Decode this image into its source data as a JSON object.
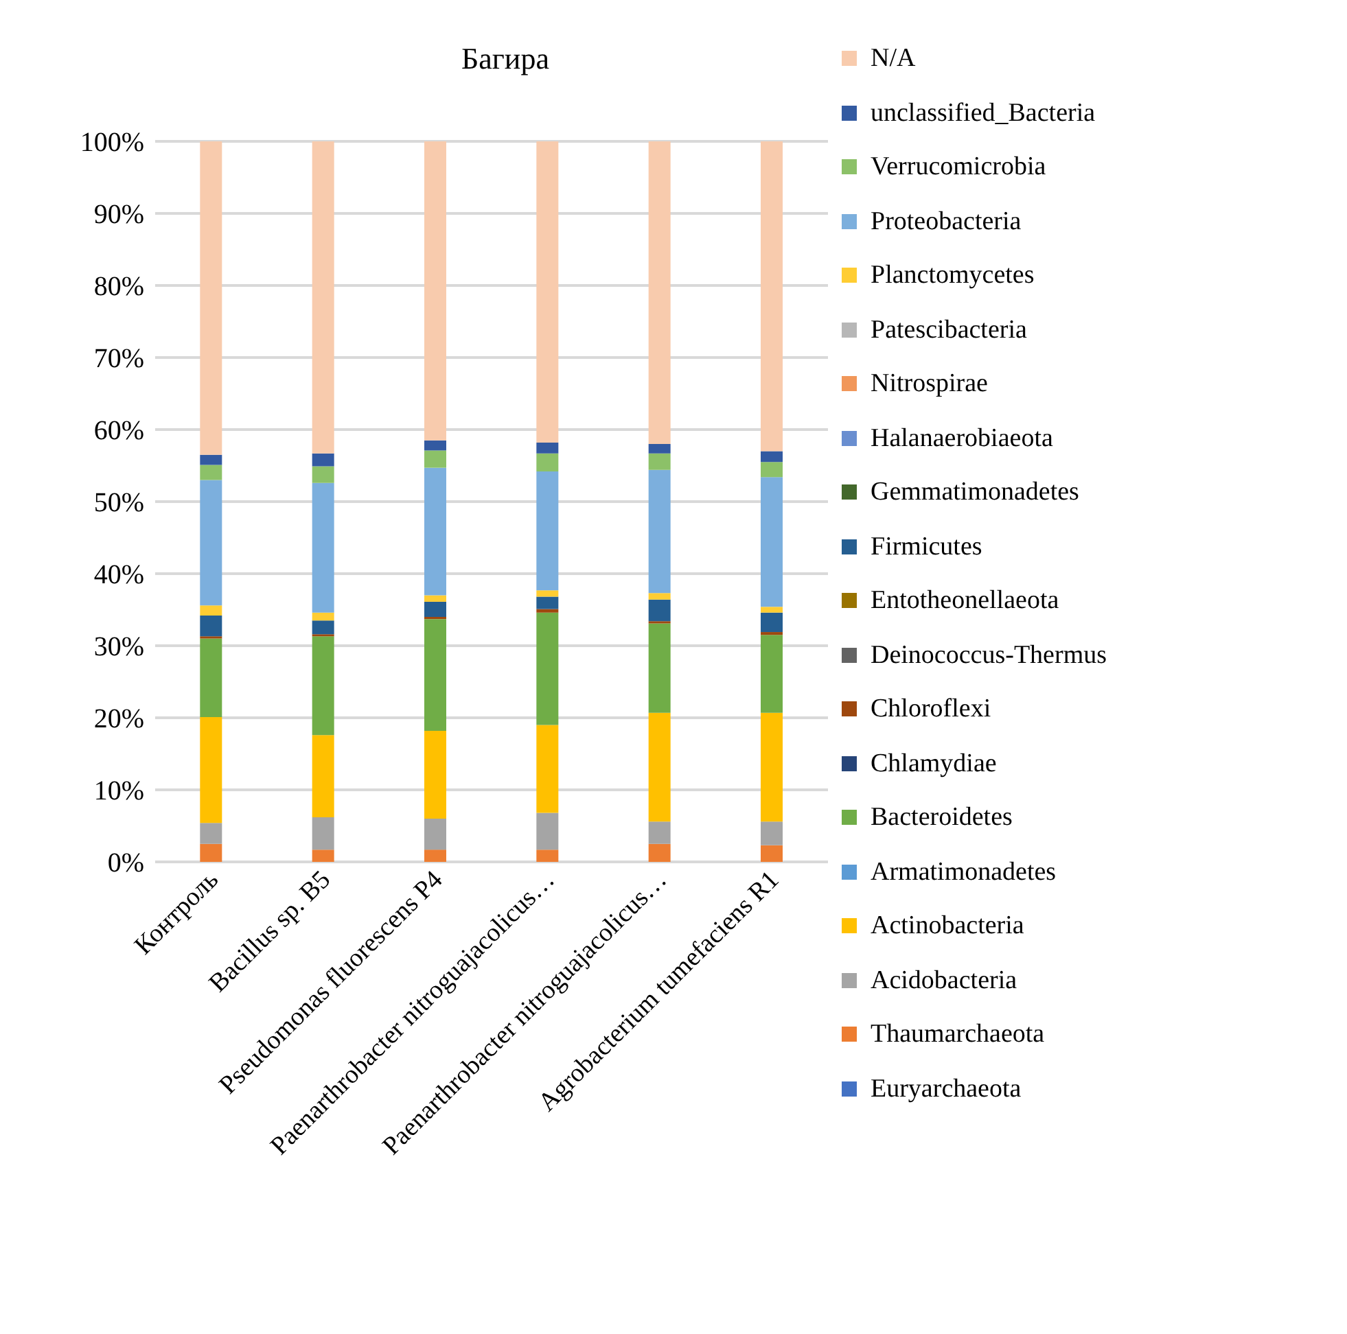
{
  "chart_data": {
    "type": "bar",
    "stacked": true,
    "title": "Багира",
    "categories": [
      "Контроль",
      "Bacillus sp. B5",
      "Pseudomonas fluorescens P4",
      "Paenarthrobacter nitroguajacolicus…",
      "Paenarthrobacter nitroguajacolicus…",
      "Agrobacterium tumefaciens R1"
    ],
    "series": [
      {
        "name": "Euryarchaeota",
        "color": "#4472c4",
        "values": [
          null,
          null,
          null,
          null,
          null,
          null
        ]
      },
      {
        "name": "Thaumarchaeota",
        "color": "#ed7d31",
        "values": [
          2.5,
          1.7,
          1.7,
          1.7,
          2.5,
          2.3
        ]
      },
      {
        "name": "Acidobacteria",
        "color": "#a5a5a5",
        "values": [
          2.9,
          4.5,
          4.3,
          5.1,
          3.1,
          3.3
        ]
      },
      {
        "name": "Actinobacteria",
        "color": "#ffc000",
        "values": [
          14.7,
          11.4,
          12.2,
          12.2,
          15.1,
          15.1
        ]
      },
      {
        "name": "Armatimonadetes",
        "color": "#5b9bd5",
        "values": [
          null,
          null,
          null,
          null,
          null,
          null
        ]
      },
      {
        "name": "Bacteroidetes",
        "color": "#70ad47",
        "values": [
          10.9,
          13.7,
          15.5,
          15.6,
          12.4,
          10.8
        ]
      },
      {
        "name": "Chlamydiae",
        "color": "#264478",
        "values": [
          null,
          null,
          null,
          null,
          null,
          null
        ]
      },
      {
        "name": "Chloroflexi",
        "color": "#9e480e",
        "values": [
          0.3,
          0.3,
          0.3,
          0.5,
          0.3,
          0.4
        ]
      },
      {
        "name": "Deinococcus-Thermus",
        "color": "#636363",
        "values": [
          null,
          null,
          null,
          null,
          null,
          null
        ]
      },
      {
        "name": "Entotheonellaeota",
        "color": "#997300",
        "values": [
          null,
          null,
          null,
          null,
          null,
          null
        ]
      },
      {
        "name": "Firmicutes",
        "color": "#255e91",
        "values": [
          2.9,
          1.9,
          2.1,
          1.7,
          3.0,
          2.7
        ]
      },
      {
        "name": "Gemmatimonadetes",
        "color": "#43682b",
        "values": [
          null,
          null,
          null,
          null,
          null,
          null
        ]
      },
      {
        "name": "Halanaerobiaeota",
        "color": "#698ed0",
        "values": [
          null,
          null,
          null,
          null,
          null,
          null
        ]
      },
      {
        "name": "Nitrospirae",
        "color": "#f1975a",
        "values": [
          null,
          null,
          null,
          null,
          null,
          null
        ]
      },
      {
        "name": "Patescibacteria",
        "color": "#b7b7b7",
        "values": [
          null,
          null,
          null,
          null,
          null,
          null
        ]
      },
      {
        "name": "Planctomycetes",
        "color": "#ffcd33",
        "values": [
          1.4,
          1.1,
          0.9,
          0.9,
          0.9,
          0.8
        ]
      },
      {
        "name": "Proteobacteria",
        "color": "#7cafdd",
        "values": [
          17.4,
          18.0,
          17.7,
          16.5,
          17.1,
          18.0
        ]
      },
      {
        "name": "Verrucomicrobia",
        "color": "#8cc168",
        "values": [
          2.1,
          2.3,
          2.4,
          2.5,
          2.3,
          2.1
        ]
      },
      {
        "name": "unclassified_Bacteria",
        "color": "#335aa1",
        "values": [
          1.4,
          1.8,
          1.4,
          1.5,
          1.3,
          1.5
        ]
      },
      {
        "name": "N/A",
        "color": "#f8cbad",
        "values": [
          43.5,
          43.3,
          41.5,
          41.8,
          42.0,
          43.0
        ]
      }
    ],
    "ylim": [
      0,
      100
    ],
    "yticks": [
      {
        "value": 0,
        "label": "0%"
      },
      {
        "value": 10,
        "label": "10%"
      },
      {
        "value": 20,
        "label": "20%"
      },
      {
        "value": 30,
        "label": "30%"
      },
      {
        "value": 40,
        "label": "40%"
      },
      {
        "value": 50,
        "label": "50%"
      },
      {
        "value": 60,
        "label": "60%"
      },
      {
        "value": 70,
        "label": "70%"
      },
      {
        "value": 80,
        "label": "80%"
      },
      {
        "value": 90,
        "label": "90%"
      },
      {
        "value": 100,
        "label": "100%"
      }
    ],
    "grid": "y",
    "legend": "right"
  }
}
